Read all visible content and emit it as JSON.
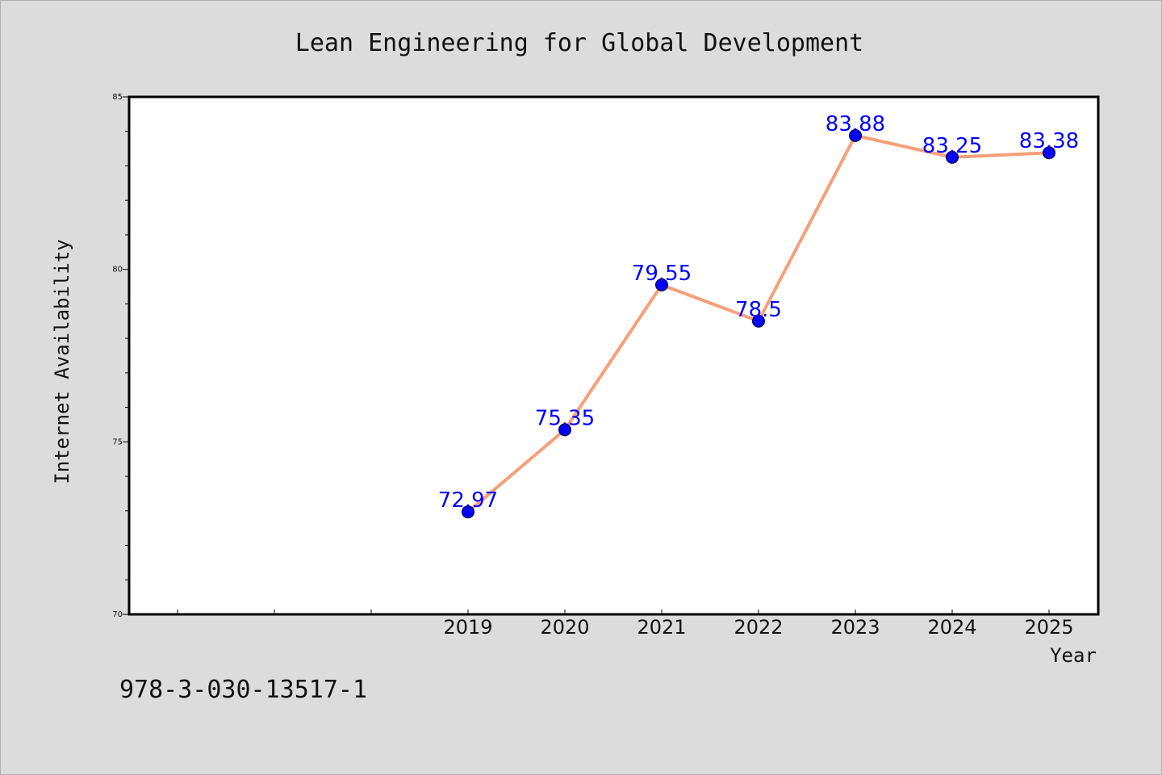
{
  "chart_data": {
    "type": "line",
    "title": "Lean Engineering for Global Development",
    "xlabel": "Year",
    "ylabel": "Internet Availability",
    "x": [
      "2019",
      "2020",
      "2021",
      "2022",
      "2023",
      "2024",
      "2025"
    ],
    "series": [
      {
        "values": [
          72.97,
          75.35,
          79.55,
          78.5,
          83.88,
          83.25,
          83.38
        ],
        "labels": [
          "72.97",
          "75.35",
          "79.55",
          "78.5",
          "83.88",
          "83.25",
          "83.38"
        ],
        "line_color": "#f5a07a",
        "marker_color": "#0000ff"
      }
    ],
    "ylim": [
      70,
      85
    ],
    "yticks": [
      "70",
      "75",
      "80",
      "85"
    ],
    "grid": false,
    "legend": "none",
    "label_color": "#0000ff"
  },
  "footer": {
    "code": "978-3-030-13517-1"
  },
  "colors": {
    "background": "#dcdcdc",
    "plot_background": "#ffffff"
  }
}
